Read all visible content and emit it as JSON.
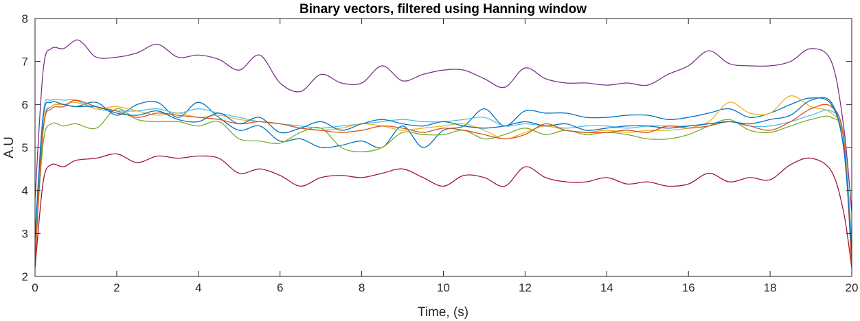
{
  "chart_data": {
    "type": "line",
    "title": "Binary vectors, filtered using Hanning window",
    "xlabel": "Time, (s)",
    "ylabel": "A.U",
    "xlim": [
      0,
      20
    ],
    "ylim": [
      2,
      8
    ],
    "xticks": [
      0,
      2,
      4,
      6,
      8,
      10,
      12,
      14,
      16,
      18,
      20
    ],
    "yticks": [
      2,
      3,
      4,
      5,
      6,
      7,
      8
    ],
    "grid": false,
    "box": true,
    "series": [
      {
        "color": "#7E2F8E",
        "x": [
          0,
          0.2,
          0.4,
          0.7,
          1.0,
          1.2,
          1.5,
          2.0,
          2.5,
          3.0,
          3.5,
          4.0,
          4.5,
          5.0,
          5.5,
          6.0,
          6.5,
          7.0,
          7.5,
          8.0,
          8.5,
          9.0,
          9.5,
          10.0,
          10.5,
          11.0,
          11.5,
          12.0,
          12.5,
          13.0,
          13.5,
          14.0,
          14.5,
          15.0,
          15.5,
          16.0,
          16.5,
          17.0,
          17.5,
          18.0,
          18.5,
          19.0,
          19.5,
          19.8,
          20.0
        ],
        "y": [
          3.8,
          6.8,
          7.3,
          7.3,
          7.5,
          7.4,
          7.1,
          7.1,
          7.2,
          7.4,
          7.1,
          7.15,
          7.05,
          6.8,
          7.15,
          6.5,
          6.3,
          6.7,
          6.5,
          6.5,
          6.9,
          6.55,
          6.7,
          6.8,
          6.8,
          6.6,
          6.4,
          6.85,
          6.6,
          6.5,
          6.5,
          6.45,
          6.5,
          6.45,
          6.7,
          6.9,
          7.25,
          6.95,
          6.9,
          6.9,
          7.0,
          7.3,
          7.0,
          5.5,
          3.5
        ]
      },
      {
        "color": "#A2142F",
        "x": [
          0,
          0.2,
          0.4,
          0.7,
          1.0,
          1.5,
          2.0,
          2.5,
          3.0,
          3.5,
          4.0,
          4.5,
          5.0,
          5.5,
          6.0,
          6.5,
          7.0,
          7.5,
          8.0,
          8.5,
          9.0,
          9.5,
          10.0,
          10.5,
          11.0,
          11.5,
          12.0,
          12.5,
          13.0,
          13.5,
          14.0,
          14.5,
          15.0,
          15.5,
          16.0,
          16.5,
          17.0,
          17.5,
          18.0,
          18.5,
          19.0,
          19.5,
          19.8,
          20.0
        ],
        "y": [
          2.2,
          4.2,
          4.6,
          4.55,
          4.7,
          4.75,
          4.85,
          4.65,
          4.8,
          4.75,
          4.8,
          4.75,
          4.4,
          4.5,
          4.35,
          4.1,
          4.3,
          4.35,
          4.3,
          4.4,
          4.5,
          4.3,
          4.1,
          4.35,
          4.3,
          4.1,
          4.55,
          4.3,
          4.2,
          4.2,
          4.3,
          4.15,
          4.2,
          4.1,
          4.15,
          4.4,
          4.2,
          4.3,
          4.25,
          4.6,
          4.75,
          4.45,
          3.5,
          2.2
        ]
      },
      {
        "color": "#0072BD",
        "x": [
          0,
          0.2,
          0.4,
          0.7,
          1.0,
          1.5,
          2.0,
          2.5,
          3.0,
          3.5,
          4.0,
          4.5,
          5.0,
          5.5,
          6.0,
          6.5,
          7.0,
          7.5,
          8.0,
          8.5,
          9.0,
          9.5,
          10.0,
          10.5,
          11.0,
          11.5,
          12.0,
          12.5,
          13.0,
          13.5,
          14.0,
          14.5,
          15.0,
          15.5,
          16.0,
          16.5,
          17.0,
          17.5,
          18.0,
          18.5,
          19.0,
          19.5,
          19.8,
          20.0
        ],
        "y": [
          2.8,
          5.5,
          5.95,
          6.0,
          5.95,
          6.05,
          5.75,
          6.0,
          6.05,
          5.7,
          6.05,
          5.7,
          5.4,
          5.5,
          5.15,
          5.2,
          5.0,
          5.05,
          5.15,
          5.0,
          5.5,
          5.0,
          5.4,
          5.5,
          5.9,
          5.5,
          5.85,
          5.8,
          5.8,
          5.7,
          5.7,
          5.75,
          5.75,
          5.65,
          5.7,
          5.8,
          5.9,
          5.7,
          5.8,
          6.0,
          6.15,
          6.0,
          5.0,
          2.7
        ]
      },
      {
        "color": "#4DBEEE",
        "x": [
          0,
          0.2,
          0.4,
          0.7,
          1.0,
          1.5,
          2.0,
          2.5,
          3.0,
          3.5,
          4.0,
          4.5,
          5.0,
          5.5,
          6.0,
          6.5,
          7.0,
          7.5,
          8.0,
          8.5,
          9.0,
          9.5,
          10.0,
          10.5,
          11.0,
          11.5,
          12.0,
          12.5,
          13.0,
          13.5,
          14.0,
          14.5,
          15.0,
          15.5,
          16.0,
          16.5,
          17.0,
          17.5,
          18.0,
          18.5,
          19.0,
          19.5,
          19.8,
          20.0
        ],
        "y": [
          3.0,
          5.8,
          6.1,
          6.1,
          6.1,
          5.9,
          5.85,
          5.85,
          5.9,
          5.8,
          5.9,
          5.8,
          5.7,
          5.6,
          5.55,
          5.5,
          5.45,
          5.5,
          5.55,
          5.6,
          5.65,
          5.6,
          5.6,
          5.65,
          5.7,
          5.5,
          5.55,
          5.5,
          5.45,
          5.5,
          5.5,
          5.45,
          5.5,
          5.5,
          5.5,
          5.55,
          5.6,
          5.5,
          5.5,
          5.6,
          5.75,
          5.85,
          5.3,
          2.8
        ]
      },
      {
        "color": "#77AC30",
        "x": [
          0,
          0.2,
          0.4,
          0.7,
          1.0,
          1.5,
          2.0,
          2.5,
          3.0,
          3.5,
          4.0,
          4.5,
          5.0,
          5.5,
          6.0,
          6.5,
          7.0,
          7.5,
          8.0,
          8.5,
          9.0,
          9.5,
          10.0,
          10.5,
          11.0,
          11.5,
          12.0,
          12.5,
          13.0,
          13.5,
          14.0,
          14.5,
          15.0,
          15.5,
          16.0,
          16.5,
          17.0,
          17.5,
          18.0,
          18.5,
          19.0,
          19.5,
          19.8,
          20.0
        ],
        "y": [
          2.6,
          5.1,
          5.55,
          5.5,
          5.55,
          5.45,
          5.9,
          5.65,
          5.6,
          5.6,
          5.5,
          5.6,
          5.2,
          5.15,
          5.1,
          5.35,
          5.45,
          5.0,
          4.9,
          5.0,
          5.35,
          5.3,
          5.3,
          5.4,
          5.2,
          5.3,
          5.45,
          5.3,
          5.4,
          5.3,
          5.35,
          5.3,
          5.2,
          5.2,
          5.3,
          5.5,
          5.65,
          5.4,
          5.35,
          5.5,
          5.65,
          5.7,
          5.2,
          2.5
        ]
      },
      {
        "color": "#EDB120",
        "x": [
          0,
          0.2,
          0.4,
          0.7,
          1.0,
          1.5,
          2.0,
          2.5,
          3.0,
          3.5,
          4.0,
          4.5,
          5.0,
          5.5,
          6.0,
          6.5,
          7.0,
          7.5,
          8.0,
          8.5,
          9.0,
          9.5,
          10.0,
          10.5,
          11.0,
          11.5,
          12.0,
          12.5,
          13.0,
          13.5,
          14.0,
          14.5,
          15.0,
          15.5,
          16.0,
          16.5,
          17.0,
          17.5,
          18.0,
          18.5,
          19.0,
          19.5,
          19.8,
          20.0
        ],
        "y": [
          2.5,
          5.5,
          5.95,
          6.0,
          6.05,
          5.9,
          5.95,
          5.85,
          5.75,
          5.8,
          5.7,
          5.75,
          5.65,
          5.6,
          5.55,
          5.45,
          5.4,
          5.45,
          5.55,
          5.5,
          5.4,
          5.45,
          5.5,
          5.55,
          5.4,
          5.2,
          5.35,
          5.5,
          5.4,
          5.35,
          5.4,
          5.35,
          5.4,
          5.4,
          5.45,
          5.6,
          6.05,
          5.8,
          5.8,
          6.2,
          5.95,
          5.8,
          5.2,
          2.4
        ]
      },
      {
        "color": "#D95319",
        "x": [
          0,
          0.2,
          0.4,
          0.7,
          1.0,
          1.5,
          2.0,
          2.5,
          3.0,
          3.5,
          4.0,
          4.5,
          5.0,
          5.5,
          6.0,
          6.5,
          7.0,
          7.5,
          8.0,
          8.5,
          9.0,
          9.5,
          10.0,
          10.5,
          11.0,
          11.5,
          12.0,
          12.5,
          13.0,
          13.5,
          14.0,
          14.5,
          15.0,
          15.5,
          16.0,
          16.5,
          17.0,
          17.5,
          18.0,
          18.5,
          19.0,
          19.5,
          19.8,
          20.0
        ],
        "y": [
          2.3,
          5.4,
          5.9,
          5.95,
          6.1,
          5.95,
          5.85,
          5.7,
          5.8,
          5.75,
          5.7,
          5.65,
          5.55,
          5.6,
          5.55,
          5.45,
          5.4,
          5.35,
          5.4,
          5.5,
          5.45,
          5.35,
          5.45,
          5.4,
          5.3,
          5.2,
          5.3,
          5.55,
          5.4,
          5.35,
          5.35,
          5.4,
          5.35,
          5.5,
          5.45,
          5.5,
          5.6,
          5.5,
          5.4,
          5.6,
          5.9,
          5.95,
          5.2,
          2.2
        ]
      },
      {
        "color": "#0072BD",
        "x": [
          0,
          0.2,
          0.4,
          0.7,
          1.0,
          1.5,
          2.0,
          2.5,
          3.0,
          3.5,
          4.0,
          4.5,
          5.0,
          5.5,
          6.0,
          6.5,
          7.0,
          7.5,
          8.0,
          8.5,
          9.0,
          9.5,
          10.0,
          10.5,
          11.0,
          11.5,
          12.0,
          12.5,
          13.0,
          13.5,
          14.0,
          14.5,
          15.0,
          15.5,
          16.0,
          16.5,
          17.0,
          17.5,
          18.0,
          18.5,
          19.0,
          19.5,
          19.8,
          20.0
        ],
        "y": [
          2.9,
          5.7,
          6.05,
          6.0,
          5.95,
          5.95,
          5.8,
          5.75,
          5.85,
          5.65,
          5.6,
          5.8,
          5.55,
          5.7,
          5.35,
          5.45,
          5.6,
          5.4,
          5.55,
          5.65,
          5.55,
          5.5,
          5.6,
          5.5,
          5.45,
          5.5,
          5.6,
          5.5,
          5.55,
          5.4,
          5.45,
          5.5,
          5.5,
          5.45,
          5.5,
          5.55,
          5.6,
          5.55,
          5.65,
          5.75,
          6.1,
          6.05,
          5.0,
          2.6
        ]
      }
    ]
  }
}
